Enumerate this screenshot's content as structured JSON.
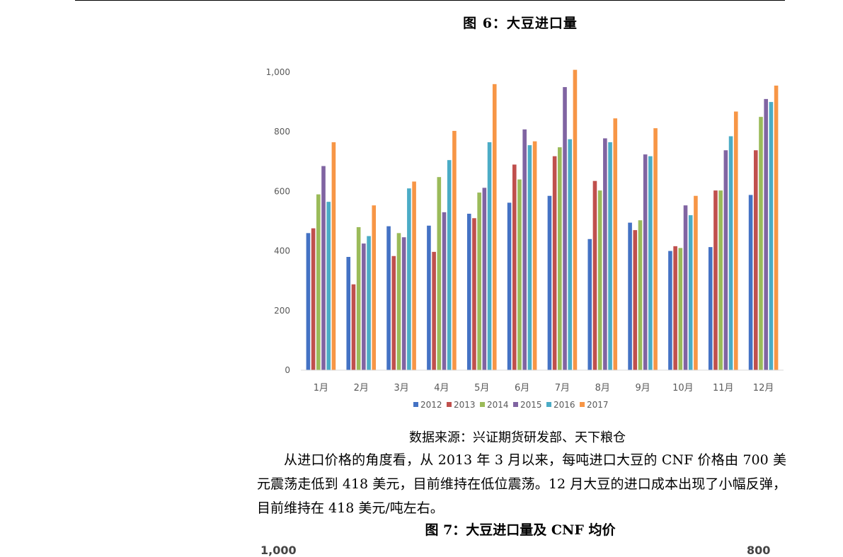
{
  "figure6": {
    "title": "图 6：大豆进口量"
  },
  "source": "数据来源：兴证期货研发部、天下粮仓",
  "paragraph": "从进口价格的角度看，从 2013 年 3 月以来，每吨进口大豆的 CNF 价格由 700 美元震荡走低到 418 美元，目前维持在低位震荡。12 月大豆的进口成本出现了小幅反弹，目前维持在 418 美元/吨左右。",
  "figure7": {
    "title": "图 7：大豆进口量及 CNF 均价"
  },
  "figure7_axis_fragments": {
    "left": "1,000",
    "right": "800"
  },
  "chart_data": {
    "type": "bar",
    "categories": [
      "1月",
      "2月",
      "3月",
      "4月",
      "5月",
      "6月",
      "7月",
      "8月",
      "9月",
      "10月",
      "11月",
      "12月"
    ],
    "ylim": [
      0,
      1000
    ],
    "yticks": [
      0,
      200,
      400,
      600,
      800,
      1000
    ],
    "ytick_labels": [
      "0",
      "200",
      "400",
      "600",
      "800",
      "1,000"
    ],
    "grid": false,
    "legend_position": "bottom",
    "series": [
      {
        "name": "2012",
        "color": "#4472C4",
        "values": [
          460,
          380,
          483,
          485,
          525,
          562,
          585,
          440,
          495,
          400,
          413,
          588
        ]
      },
      {
        "name": "2013",
        "color": "#C0504D",
        "values": [
          476,
          288,
          383,
          397,
          510,
          690,
          718,
          635,
          470,
          416,
          603,
          738
        ]
      },
      {
        "name": "2014",
        "color": "#9BBB59",
        "values": [
          590,
          480,
          460,
          648,
          596,
          640,
          748,
          603,
          503,
          410,
          603,
          850
        ]
      },
      {
        "name": "2015",
        "color": "#8064A2",
        "values": [
          685,
          425,
          446,
          530,
          612,
          808,
          950,
          778,
          724,
          553,
          738,
          910
        ]
      },
      {
        "name": "2016",
        "color": "#4BACC6",
        "values": [
          565,
          450,
          610,
          705,
          765,
          755,
          775,
          765,
          718,
          520,
          785,
          900
        ]
      },
      {
        "name": "2017",
        "color": "#F79646",
        "values": [
          765,
          553,
          633,
          803,
          960,
          768,
          1008,
          845,
          812,
          585,
          868,
          955
        ]
      }
    ]
  }
}
